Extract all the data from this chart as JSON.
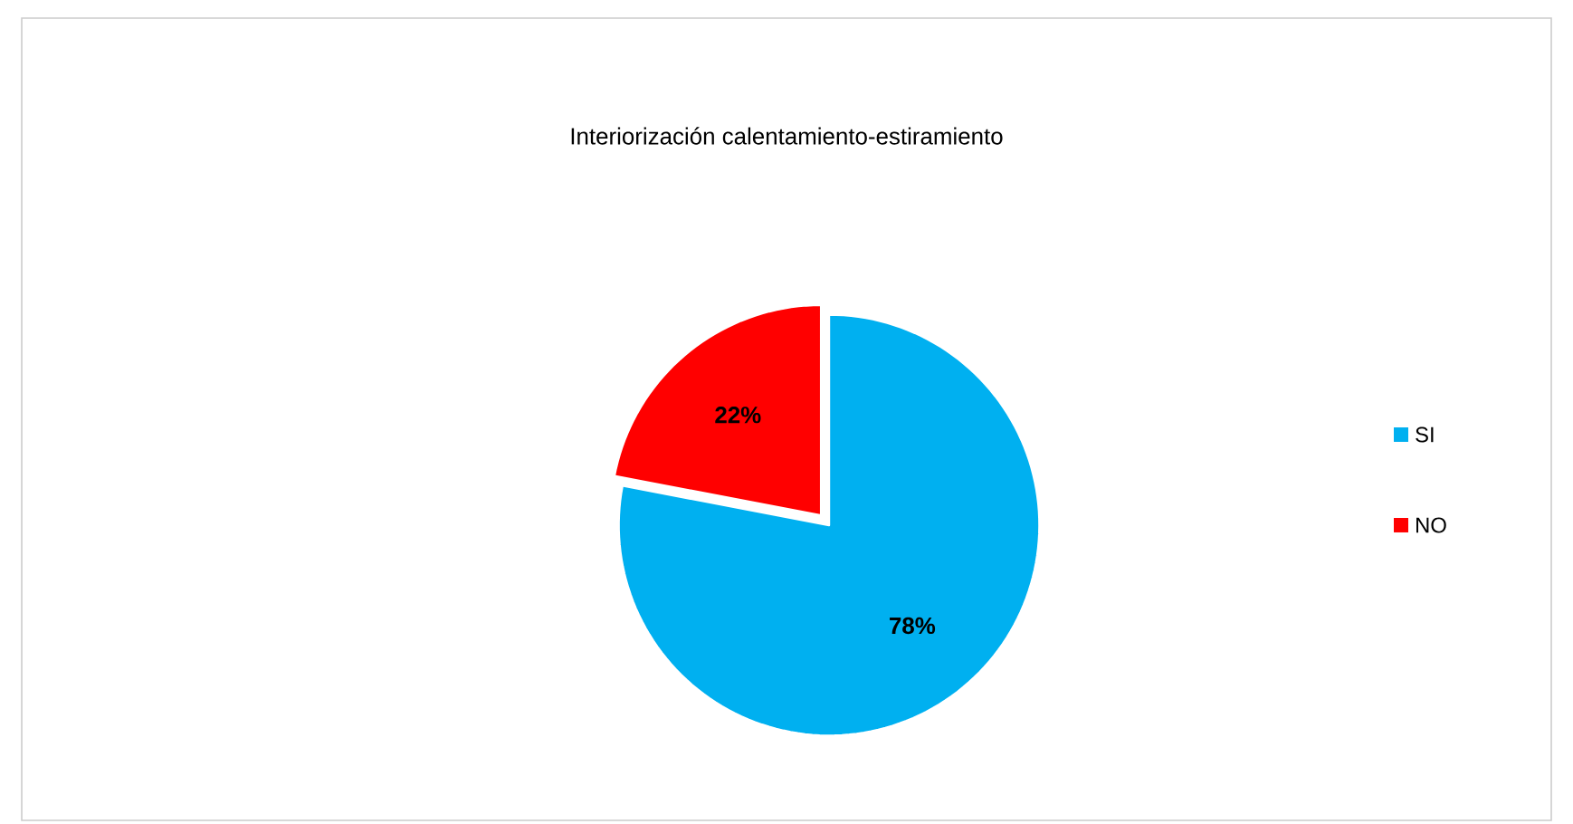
{
  "chart_data": {
    "type": "pie",
    "title": "Interiorización calentamiento-estiramiento",
    "categories": [
      "SI",
      "NO"
    ],
    "values": [
      78,
      22
    ],
    "colors": [
      "#00b0f0",
      "#ff0000"
    ],
    "value_labels": [
      "78%",
      "22%"
    ],
    "legend": "right"
  }
}
